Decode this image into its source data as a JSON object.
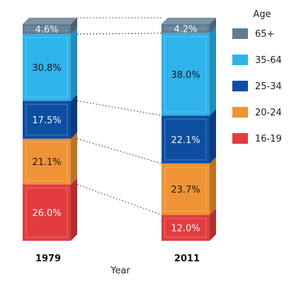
{
  "chart_data": {
    "type": "bar",
    "stacked": true,
    "percent": true,
    "xlabel": "Year",
    "categories": [
      "1979",
      "2011"
    ],
    "legend_title": "Age",
    "legend_position": "right",
    "series": [
      {
        "name": "16-19",
        "color": "#e13d3f",
        "values": [
          26.0,
          12.0
        ],
        "labels": [
          "26.0%",
          "12.0%"
        ]
      },
      {
        "name": "20-24",
        "color": "#ef9334",
        "values": [
          21.1,
          23.7
        ],
        "labels": [
          "21.1%",
          "23.7%"
        ]
      },
      {
        "name": "25-34",
        "color": "#0d4ea1",
        "values": [
          17.5,
          22.1
        ],
        "labels": [
          "17.5%",
          "22.1%"
        ]
      },
      {
        "name": "35-64",
        "color": "#2eb3ea",
        "values": [
          30.8,
          38.0
        ],
        "labels": [
          "30.8%",
          "38.0%"
        ]
      },
      {
        "name": "65+",
        "color": "#5f7d92",
        "values": [
          4.6,
          4.2
        ],
        "labels": [
          "4.6%",
          "4.2%"
        ]
      }
    ],
    "legend_order": [
      "65+",
      "35-64",
      "25-34",
      "20-24",
      "16-19"
    ]
  }
}
